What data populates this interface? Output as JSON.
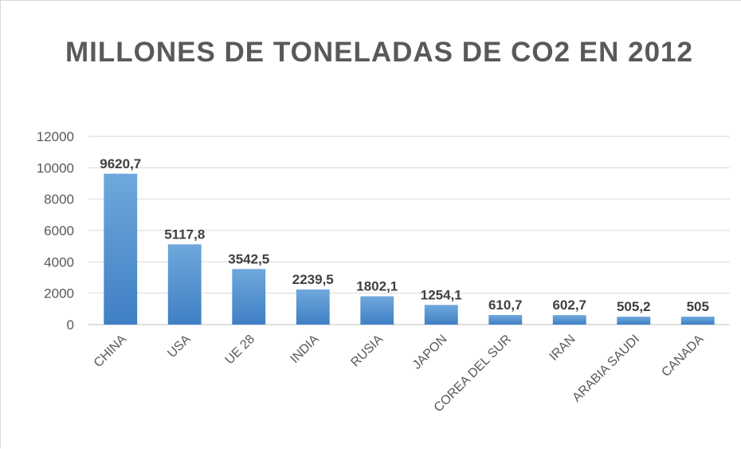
{
  "chart_data": {
    "type": "bar",
    "title": "MILLONES DE TONELADAS DE CO2 EN 2012",
    "categories": [
      "CHINA",
      "USA",
      "UE 28",
      "INDIA",
      "RUSIA",
      "JAPON",
      "COREA DEL SUR",
      "IRAN",
      "ARABIA SAUDI",
      "CANADA"
    ],
    "values": [
      9620.7,
      5117.8,
      3542.5,
      2239.5,
      1802.1,
      1254.1,
      610.7,
      602.7,
      505.2,
      505
    ],
    "data_labels": [
      "9620,7",
      "5117,8",
      "3542,5",
      "2239,5",
      "1802,1",
      "1254,1",
      "610,7",
      "602,7",
      "505,2",
      "505"
    ],
    "y_ticks": [
      0,
      2000,
      4000,
      6000,
      8000,
      10000,
      12000
    ],
    "ylim": [
      0,
      12000
    ],
    "grid": true,
    "legend": "none",
    "bar_color": "#5b9bd5"
  }
}
